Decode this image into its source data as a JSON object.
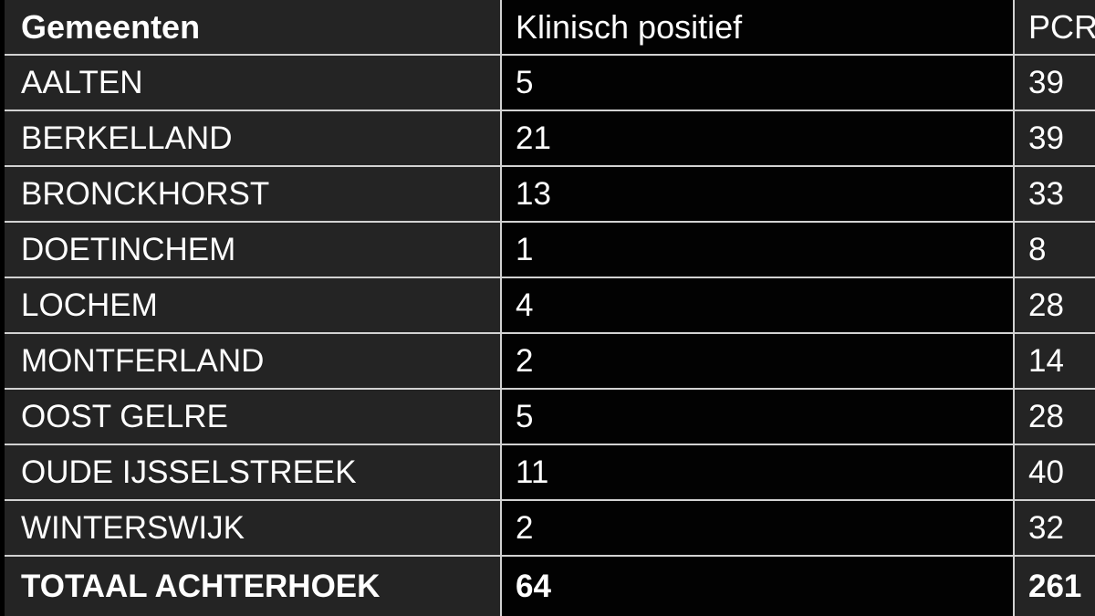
{
  "chart_data": {
    "type": "table",
    "columns": [
      "Gemeenten",
      "Klinisch positief",
      "PCR"
    ],
    "rows": [
      [
        "AALTEN",
        "5",
        "39"
      ],
      [
        "BERKELLAND",
        "21",
        "39"
      ],
      [
        "BRONCKHORST",
        "13",
        "33"
      ],
      [
        "DOETINCHEM",
        "1",
        "8"
      ],
      [
        "LOCHEM",
        "4",
        "28"
      ],
      [
        "MONTFERLAND",
        "2",
        "14"
      ],
      [
        "OOST GELRE",
        "5",
        "28"
      ],
      [
        "OUDE IJSSELSTREEK",
        "11",
        "40"
      ],
      [
        "WINTERSWIJK",
        "2",
        "32"
      ]
    ],
    "total_row": [
      "TOTAAL ACHTERHOEK",
      "64",
      "261"
    ],
    "layout_hints": {
      "header_bold_first_column": true,
      "total_row_bold": true,
      "third_column_clipped_at_right_edge": true
    }
  },
  "colors": {
    "cell_background": "#242424",
    "numeric_middle_column_background": "#020202",
    "grid_line": "#d2d2d2",
    "text": "#ffffff",
    "page_background": "#000000"
  }
}
